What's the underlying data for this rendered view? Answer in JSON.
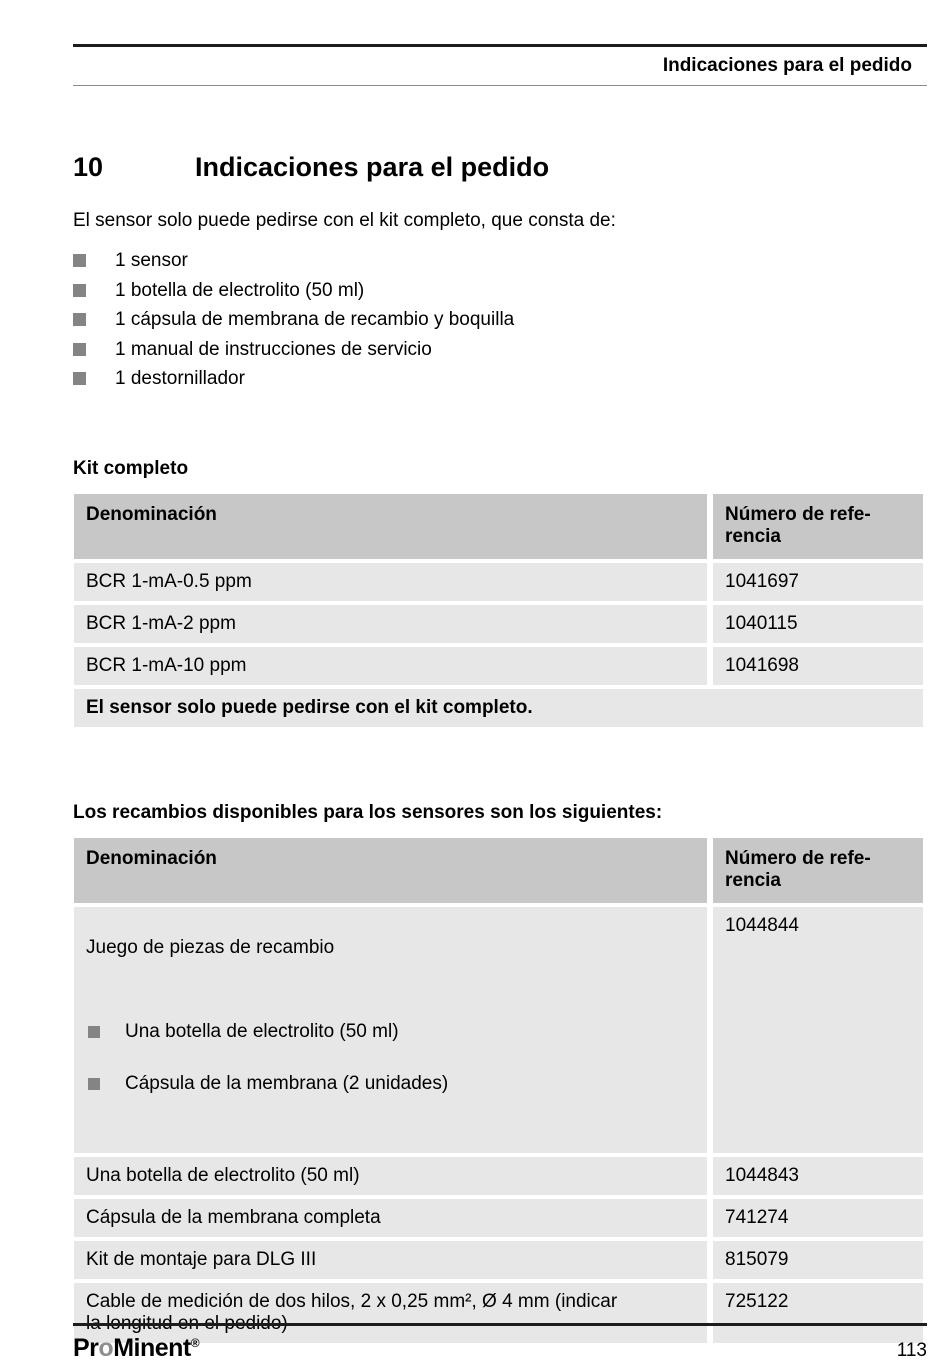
{
  "header": {
    "title": "Indicaciones para el pedido"
  },
  "chapter": {
    "number": "10",
    "title": "Indicaciones para el pedido"
  },
  "intro": "El sensor solo puede pedirse con el kit completo, que consta de:",
  "intro_list": {
    "items": [
      "1 sensor",
      "1 botella de electrolito (50 ml)",
      "1 cápsula de membrana de recambio y boquilla",
      "1 manual de instrucciones de servicio",
      "1 destornillador"
    ]
  },
  "kit": {
    "label": "Kit completo",
    "table": {
      "headers": [
        "Denominación",
        "Número de refe-\nrencia"
      ],
      "rows": [
        {
          "name": "BCR 1-mA-0.5 ppm",
          "ref": "1041697"
        },
        {
          "name": "BCR 1-mA-2 ppm",
          "ref": "1040115"
        },
        {
          "name": "BCR 1-mA-10 ppm",
          "ref": "1041698"
        }
      ],
      "note": "El sensor solo puede pedirse con el kit completo."
    }
  },
  "spares": {
    "label": "Los recambios disponibles para los sensores son los siguientes:",
    "table": {
      "headers": [
        "Denominación",
        "Número de refe-\nrencia"
      ],
      "rows": [
        {
          "name": "Juego de piezas de recambio",
          "sub_items": [
            "Una botella de electrolito (50 ml)",
            "Cápsula de la membrana (2 unidades)"
          ],
          "ref": "1044844"
        },
        {
          "name": "Una botella de electrolito (50 ml)",
          "ref": "1044843"
        },
        {
          "name": "Cápsula de la membrana completa",
          "ref": "741274"
        },
        {
          "name": "Kit de montaje para DLG III",
          "ref": "815079"
        },
        {
          "name": "Cable de medición de dos hilos, 2 x 0,25 mm², Ø 4 mm (indicar\nla longitud en el pedido)",
          "ref": "725122"
        }
      ]
    }
  },
  "footer": {
    "logo": {
      "pr": "Pr",
      "o": "o",
      "minent": "Minent",
      "reg": "®"
    },
    "page_number": "113"
  },
  "colors": {
    "table_header_bg": "#c7c7c7",
    "table_row_bg": "#e7e7e7",
    "bullet_gray": "#848484",
    "rule_black": "#1c1c1c",
    "rule_thin_gray": "#8a8a8a",
    "logo_gray": "#8e8e8e"
  }
}
